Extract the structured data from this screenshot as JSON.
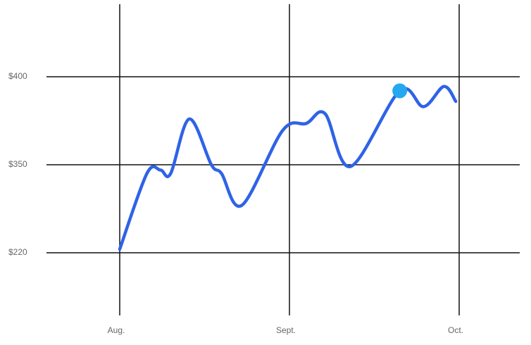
{
  "chart_data": {
    "type": "line",
    "title": "",
    "xlabel": "",
    "ylabel": "",
    "y_ticks": [
      {
        "label": "$220"
      },
      {
        "label": "$350"
      },
      {
        "label": "$400"
      }
    ],
    "x_ticks": [
      {
        "label": "Aug."
      },
      {
        "label": "Sept."
      },
      {
        "label": "Oct."
      }
    ],
    "grid": true,
    "series": [
      {
        "color": "#2f63e6",
        "points": [
          {
            "x": 0.0,
            "y": 0.04
          },
          {
            "x": 0.16,
            "y": 0.9
          },
          {
            "x": 0.24,
            "y": 0.94
          },
          {
            "x": 0.3,
            "y": 0.9
          },
          {
            "x": 0.41,
            "y": 1.52
          },
          {
            "x": 0.54,
            "y": 1.0
          },
          {
            "x": 0.6,
            "y": 0.9
          },
          {
            "x": 0.72,
            "y": 0.54
          },
          {
            "x": 0.96,
            "y": 1.39
          },
          {
            "x": 1.1,
            "y": 1.47
          },
          {
            "x": 1.21,
            "y": 1.58
          },
          {
            "x": 1.36,
            "y": 0.98
          },
          {
            "x": 1.65,
            "y": 1.84
          },
          {
            "x": 1.79,
            "y": 1.66
          },
          {
            "x": 1.91,
            "y": 1.89
          },
          {
            "x": 1.98,
            "y": 1.72
          }
        ]
      }
    ],
    "highlight": {
      "x": 1.65,
      "y": 1.84,
      "color": "#25a8f0"
    }
  }
}
